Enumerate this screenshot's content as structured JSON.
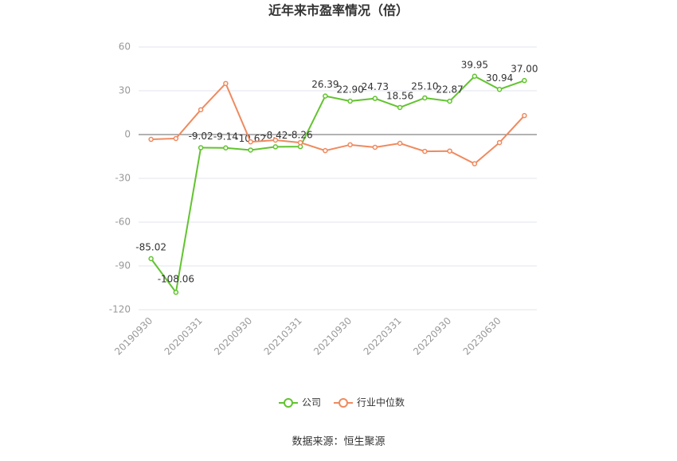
{
  "chart_data": {
    "type": "line",
    "title": "近年来市盈率情况（倍）",
    "categories": [
      "20190930",
      null,
      "20200331",
      null,
      "20200930",
      null,
      "20210331",
      null,
      "20210930",
      null,
      "20220331",
      null,
      "20220930",
      null,
      "20230630",
      null
    ],
    "series": [
      {
        "name": "公司",
        "color": "#62c32f",
        "values": [
          -85.02,
          -108.06,
          -9.02,
          -9.14,
          -10.62,
          -8.42,
          -8.26,
          26.39,
          22.9,
          24.73,
          18.56,
          25.1,
          22.87,
          39.95,
          30.94,
          37.0
        ],
        "value_labels": [
          "-85.02",
          "-108.06",
          "-9.02",
          "-9.14",
          "-10.62",
          "-8.42",
          "-8.26",
          "26.39",
          "22.90",
          "24.73",
          "18.56",
          "25.10",
          "22.87",
          "39.95",
          "30.94",
          "37.00"
        ]
      },
      {
        "name": "行业中位数",
        "color": "#ef8a5f",
        "values": [
          -3.3,
          -2.7,
          17,
          35,
          -5,
          -3.8,
          -5.5,
          -11,
          -7,
          -8.7,
          -6,
          -11.5,
          -11.3,
          -20,
          -5.5,
          13
        ]
      }
    ],
    "ylim": [
      -120,
      60
    ],
    "yticks": [
      -120,
      -90,
      -60,
      -30,
      0,
      30,
      60
    ],
    "grid": true,
    "source": "数据来源：恒生聚源"
  }
}
